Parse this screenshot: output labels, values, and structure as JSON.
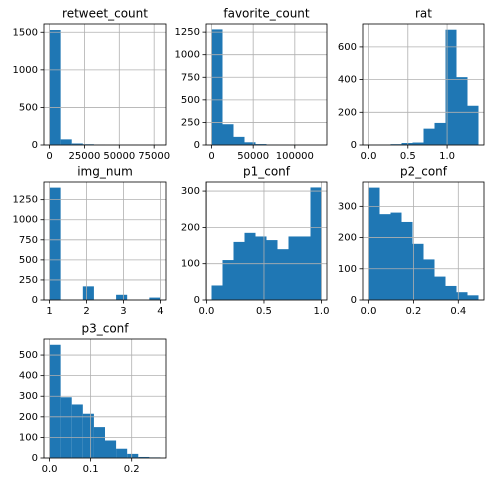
{
  "chart_data": [
    {
      "type": "histogram",
      "title": "retweet_count",
      "color": "#1f77b4",
      "grid": true,
      "bins": [
        0,
        7950,
        15900,
        23850,
        31800,
        39750,
        47700,
        55650,
        63600,
        71550,
        79500
      ],
      "values": [
        1530,
        75,
        20,
        10,
        5,
        2,
        1,
        1,
        0,
        1
      ],
      "xlim": [
        -3975,
        83475
      ],
      "ylim": [
        0,
        1610
      ],
      "xticks": [
        0,
        25000,
        50000,
        75000
      ],
      "yticks": [
        0,
        500,
        1000,
        1500
      ]
    },
    {
      "type": "histogram",
      "title": "favorite_count",
      "color": "#1f77b4",
      "grid": true,
      "bins": [
        0,
        13200,
        26400,
        39600,
        52800,
        66000,
        79200,
        92400,
        105600,
        118800,
        132000
      ],
      "values": [
        1280,
        230,
        90,
        30,
        10,
        5,
        3,
        1,
        2,
        1
      ],
      "xlim": [
        -6600,
        138600
      ],
      "ylim": [
        0,
        1340
      ],
      "xticks": [
        0,
        50000,
        100000
      ],
      "yticks": [
        0,
        250,
        500,
        750,
        1000,
        1250
      ]
    },
    {
      "type": "histogram",
      "title": "rat",
      "color": "#1f77b4",
      "grid": true,
      "bins": [
        0,
        0.14,
        0.28,
        0.42,
        0.56,
        0.7,
        0.84,
        0.98,
        1.12,
        1.26,
        1.4
      ],
      "values": [
        2,
        3,
        5,
        12,
        15,
        100,
        135,
        705,
        415,
        240
      ],
      "xlim": [
        -0.07,
        1.47
      ],
      "ylim": [
        0,
        740
      ],
      "xticks": [
        {
          "value": 0,
          "label": "0.0"
        },
        0.5,
        {
          "value": 1,
          "label": "1.0"
        }
      ],
      "yticks": [
        0,
        200,
        400,
        600
      ]
    },
    {
      "type": "histogram",
      "title": "img_num",
      "color": "#1f77b4",
      "grid": true,
      "bins": [
        1,
        1.3,
        1.6,
        1.9,
        2.2,
        2.5,
        2.8,
        3.1,
        3.4,
        3.7,
        4
      ],
      "values": [
        1400,
        0,
        0,
        170,
        0,
        0,
        65,
        0,
        0,
        30
      ],
      "xlim": [
        0.85,
        4.15
      ],
      "ylim": [
        0,
        1470
      ],
      "xticks": [
        1,
        2,
        3,
        4
      ],
      "yticks": [
        0,
        250,
        500,
        750,
        1000,
        1250
      ]
    },
    {
      "type": "histogram",
      "title": "p1_conf",
      "color": "#1f77b4",
      "grid": true,
      "bins": [
        0.044,
        0.1396,
        0.2352,
        0.3308,
        0.4264,
        0.522,
        0.6176,
        0.7132,
        0.8088,
        0.9044,
        1.0
      ],
      "values": [
        40,
        110,
        160,
        185,
        175,
        165,
        140,
        175,
        175,
        310
      ],
      "xlim": [
        -0.0038,
        1.0478
      ],
      "ylim": [
        0,
        325
      ],
      "xticks": [
        {
          "value": 0,
          "label": "0.0"
        },
        0.5,
        {
          "value": 1,
          "label": "1.0"
        }
      ],
      "yticks": [
        0,
        100,
        200,
        300
      ]
    },
    {
      "type": "histogram",
      "title": "p2_conf",
      "color": "#1f77b4",
      "grid": true,
      "bins": [
        0,
        0.049,
        0.098,
        0.147,
        0.196,
        0.245,
        0.294,
        0.343,
        0.392,
        0.441,
        0.49
      ],
      "values": [
        360,
        275,
        280,
        250,
        180,
        130,
        75,
        45,
        25,
        15
      ],
      "xlim": [
        -0.0245,
        0.5145
      ],
      "ylim": [
        0,
        378
      ],
      "xticks": [
        {
          "value": 0,
          "label": "0.0"
        },
        0.2,
        0.4
      ],
      "yticks": [
        0,
        100,
        200,
        300
      ]
    },
    {
      "type": "histogram",
      "title": "p3_conf",
      "color": "#1f77b4",
      "grid": true,
      "bins": [
        0,
        0.027,
        0.054,
        0.081,
        0.108,
        0.135,
        0.162,
        0.189,
        0.216,
        0.243,
        0.27
      ],
      "values": [
        550,
        295,
        260,
        215,
        150,
        85,
        45,
        20,
        5,
        3
      ],
      "xlim": [
        -0.0135,
        0.2835
      ],
      "ylim": [
        0,
        578
      ],
      "xticks": [
        {
          "value": 0,
          "label": "0.0"
        },
        0.1,
        0.2
      ],
      "yticks": [
        0,
        100,
        200,
        300,
        400,
        500
      ]
    }
  ]
}
